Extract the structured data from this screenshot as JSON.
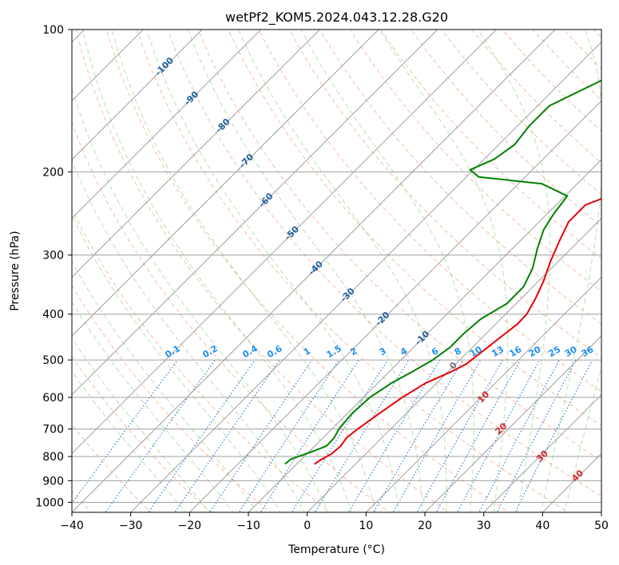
{
  "chart_data": {
    "type": "line",
    "title": "wetPf2_KOM5.2024.043.12.28.G20",
    "xlabel": "Temperature (°C)",
    "ylabel": "Pressure (hPa)",
    "xlim": [
      -40,
      50
    ],
    "ylim": [
      1050,
      100
    ],
    "y_scale": "log",
    "grid": true,
    "x_ticks": [
      -40,
      -30,
      -20,
      -10,
      0,
      10,
      20,
      30,
      40,
      50
    ],
    "y_ticks": [
      100,
      200,
      300,
      400,
      500,
      600,
      700,
      800,
      900,
      1000
    ],
    "series": [
      {
        "color": "#e8000b",
        "points": [
          [
            -7.0,
            830
          ],
          [
            -6.6,
            812
          ],
          [
            -5.8,
            790
          ],
          [
            -5.6,
            760
          ],
          [
            -6.0,
            730
          ],
          [
            -5.6,
            700
          ],
          [
            -4.6,
            650
          ],
          [
            -3.4,
            600
          ],
          [
            -1.9,
            560
          ],
          [
            0.5,
            530
          ],
          [
            1.8,
            510
          ],
          [
            2.4,
            480
          ],
          [
            3.0,
            450
          ],
          [
            3.7,
            420
          ],
          [
            3.6,
            400
          ],
          [
            2.4,
            370
          ],
          [
            0.8,
            340
          ],
          [
            -1.3,
            310
          ],
          [
            -3.3,
            280
          ],
          [
            -5.0,
            255
          ],
          [
            -5.0,
            235
          ],
          [
            -1.4,
            220
          ],
          [
            6.4,
            205
          ],
          [
            12.6,
            193
          ],
          [
            13.3,
            175
          ],
          [
            13.4,
            160
          ],
          [
            17.0,
            145
          ],
          [
            21.0,
            132
          ],
          [
            23.5,
            122
          ],
          [
            25.0,
            113
          ],
          [
            26.0,
            105
          ],
          [
            26.6,
            100
          ]
        ]
      },
      {
        "color": "#008000",
        "points": [
          [
            -12.0,
            830
          ],
          [
            -11.8,
            810
          ],
          [
            -9.4,
            780
          ],
          [
            -8.0,
            760
          ],
          [
            -8.1,
            730
          ],
          [
            -8.8,
            700
          ],
          [
            -9.2,
            650
          ],
          [
            -8.9,
            600
          ],
          [
            -7.7,
            560
          ],
          [
            -6.1,
            530
          ],
          [
            -4.6,
            500
          ],
          [
            -3.8,
            470
          ],
          [
            -3.8,
            440
          ],
          [
            -3.4,
            410
          ],
          [
            -1.6,
            380
          ],
          [
            -1.6,
            350
          ],
          [
            -3.2,
            320
          ],
          [
            -5.8,
            290
          ],
          [
            -7.9,
            265
          ],
          [
            -8.9,
            245
          ],
          [
            -9.6,
            225
          ],
          [
            -16.0,
            212
          ],
          [
            -27.9,
            205
          ],
          [
            -30.6,
            198
          ],
          [
            -28.3,
            188
          ],
          [
            -27.3,
            175
          ],
          [
            -28.0,
            160
          ],
          [
            -28.0,
            145
          ],
          [
            -24.0,
            130
          ],
          [
            -20.5,
            118
          ],
          [
            -18.0,
            108
          ],
          [
            -15.0,
            100
          ]
        ]
      }
    ],
    "dry_adiabats_c": [
      -100,
      -90,
      -80,
      -70,
      -60,
      -50,
      -40,
      -30,
      -20,
      -10,
      0,
      10,
      20,
      30,
      40
    ],
    "moist_adiabats_c": [
      0,
      10,
      20,
      30,
      40
    ],
    "mixing_ratios_gkg": [
      "0.1",
      "0.2",
      "0.4",
      "0.6",
      "1",
      "1.5",
      "2",
      "3",
      "4",
      "6",
      "8",
      "10",
      "13",
      "16",
      "20",
      "25",
      "30",
      "36"
    ],
    "mixing_ratio_label_pressure": 500
  }
}
